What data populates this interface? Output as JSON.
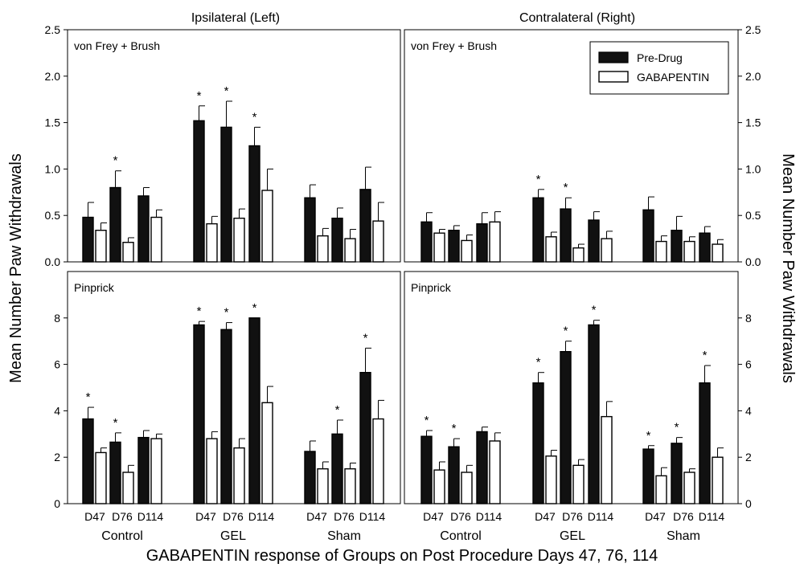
{
  "figure": {
    "column_titles": [
      "Ipsilateral (Left)",
      "Contralateral (Right)"
    ],
    "y_label_left": "Mean Number Paw Withdrawals",
    "y_label_right": "Mean Number Paw Withdrawals",
    "x_title": "GABAPENTIN response of Groups on Post Procedure Days 47, 76, 114",
    "legend": {
      "pre": "Pre-Drug",
      "gaba": "GABAPENTIN",
      "placement": "top-right of contralateral von Frey panel"
    },
    "colors": {
      "pre": "#111111",
      "gaba": "#ffffff",
      "outline": "#000000"
    }
  },
  "chart_data": [
    {
      "type": "bar",
      "panel_label": "von Frey + Brush",
      "side": "Ipsilateral (Left)",
      "groups": [
        "Control",
        "GEL",
        "Sham"
      ],
      "days": [
        "D47",
        "D76",
        "D114"
      ],
      "ylim": [
        0,
        2.5
      ],
      "yticks": [
        "0.0",
        "0.5",
        "1.0",
        "1.5",
        "2.0",
        "2.5"
      ],
      "series": [
        {
          "name": "Pre-Drug",
          "values": [
            0.48,
            0.8,
            0.71,
            1.52,
            1.45,
            1.25,
            0.69,
            0.47,
            0.78
          ],
          "errors": [
            0.16,
            0.18,
            0.09,
            0.16,
            0.28,
            0.2,
            0.14,
            0.11,
            0.24
          ]
        },
        {
          "name": "GABAPENTIN",
          "values": [
            0.34,
            0.21,
            0.48,
            0.41,
            0.47,
            0.77,
            0.28,
            0.25,
            0.44
          ],
          "errors": [
            0.08,
            0.05,
            0.08,
            0.08,
            0.1,
            0.23,
            0.08,
            0.1,
            0.2
          ]
        }
      ],
      "significance": [
        {
          "bar": 1,
          "mark": "*"
        },
        {
          "bar": 3,
          "mark": "*"
        },
        {
          "bar": 4,
          "mark": "*"
        },
        {
          "bar": 5,
          "mark": "*"
        }
      ]
    },
    {
      "type": "bar",
      "panel_label": "von Frey + Brush",
      "side": "Contralateral (Right)",
      "groups": [
        "Control",
        "GEL",
        "Sham"
      ],
      "days": [
        "D47",
        "D76",
        "D114"
      ],
      "ylim": [
        0,
        2.5
      ],
      "yticks": [
        "0.0",
        "0.5",
        "1.0",
        "1.5",
        "2.0",
        "2.5"
      ],
      "series": [
        {
          "name": "Pre-Drug",
          "values": [
            0.43,
            0.34,
            0.41,
            0.69,
            0.57,
            0.45,
            0.56,
            0.34,
            0.31
          ],
          "errors": [
            0.1,
            0.05,
            0.12,
            0.09,
            0.12,
            0.09,
            0.14,
            0.15,
            0.07
          ]
        },
        {
          "name": "GABAPENTIN",
          "values": [
            0.31,
            0.23,
            0.43,
            0.27,
            0.15,
            0.25,
            0.22,
            0.22,
            0.19
          ],
          "errors": [
            0.04,
            0.06,
            0.11,
            0.05,
            0.04,
            0.08,
            0.06,
            0.05,
            0.05
          ]
        }
      ],
      "significance": [
        {
          "bar": 3,
          "mark": "*"
        },
        {
          "bar": 4,
          "mark": "*"
        }
      ]
    },
    {
      "type": "bar",
      "panel_label": "Pinprick",
      "side": "Ipsilateral (Left)",
      "groups": [
        "Control",
        "GEL",
        "Sham"
      ],
      "days": [
        "D47",
        "D76",
        "D114"
      ],
      "ylim": [
        0,
        10
      ],
      "yticks": [
        "0",
        "2",
        "4",
        "6",
        "8"
      ],
      "series": [
        {
          "name": "Pre-Drug",
          "values": [
            3.65,
            2.65,
            2.85,
            7.7,
            7.5,
            8.0,
            2.25,
            3.0,
            5.65
          ],
          "errors": [
            0.5,
            0.4,
            0.3,
            0.15,
            0.3,
            0.0,
            0.45,
            0.6,
            1.05
          ]
        },
        {
          "name": "GABAPENTIN",
          "values": [
            2.2,
            1.35,
            2.8,
            2.8,
            2.4,
            4.35,
            1.5,
            1.5,
            3.65
          ],
          "errors": [
            0.2,
            0.3,
            0.2,
            0.3,
            0.4,
            0.7,
            0.3,
            0.25,
            0.8
          ]
        }
      ],
      "significance": [
        {
          "bar": 0,
          "mark": "*"
        },
        {
          "bar": 1,
          "mark": "*"
        },
        {
          "bar": 3,
          "mark": "*"
        },
        {
          "bar": 4,
          "mark": "*"
        },
        {
          "bar": 5,
          "mark": "*"
        },
        {
          "bar": 7,
          "mark": "*"
        },
        {
          "bar": 8,
          "mark": "*"
        }
      ]
    },
    {
      "type": "bar",
      "panel_label": "Pinprick",
      "side": "Contralateral (Right)",
      "groups": [
        "Control",
        "GEL",
        "Sham"
      ],
      "days": [
        "D47",
        "D76",
        "D114"
      ],
      "ylim": [
        0,
        10
      ],
      "yticks": [
        "0",
        "2",
        "4",
        "6",
        "8"
      ],
      "series": [
        {
          "name": "Pre-Drug",
          "values": [
            2.9,
            2.45,
            3.1,
            5.2,
            6.55,
            7.7,
            2.35,
            2.6,
            5.2
          ],
          "errors": [
            0.25,
            0.35,
            0.2,
            0.45,
            0.45,
            0.2,
            0.15,
            0.25,
            0.75
          ]
        },
        {
          "name": "GABAPENTIN",
          "values": [
            1.45,
            1.35,
            2.7,
            2.05,
            1.65,
            3.75,
            1.2,
            1.35,
            2.0
          ],
          "errors": [
            0.35,
            0.3,
            0.35,
            0.25,
            0.25,
            0.65,
            0.35,
            0.15,
            0.4
          ]
        }
      ],
      "significance": [
        {
          "bar": 0,
          "mark": "*"
        },
        {
          "bar": 1,
          "mark": "*"
        },
        {
          "bar": 3,
          "mark": "*"
        },
        {
          "bar": 4,
          "mark": "*"
        },
        {
          "bar": 5,
          "mark": "*"
        },
        {
          "bar": 6,
          "mark": "*"
        },
        {
          "bar": 7,
          "mark": "*"
        },
        {
          "bar": 8,
          "mark": "*"
        }
      ]
    }
  ]
}
